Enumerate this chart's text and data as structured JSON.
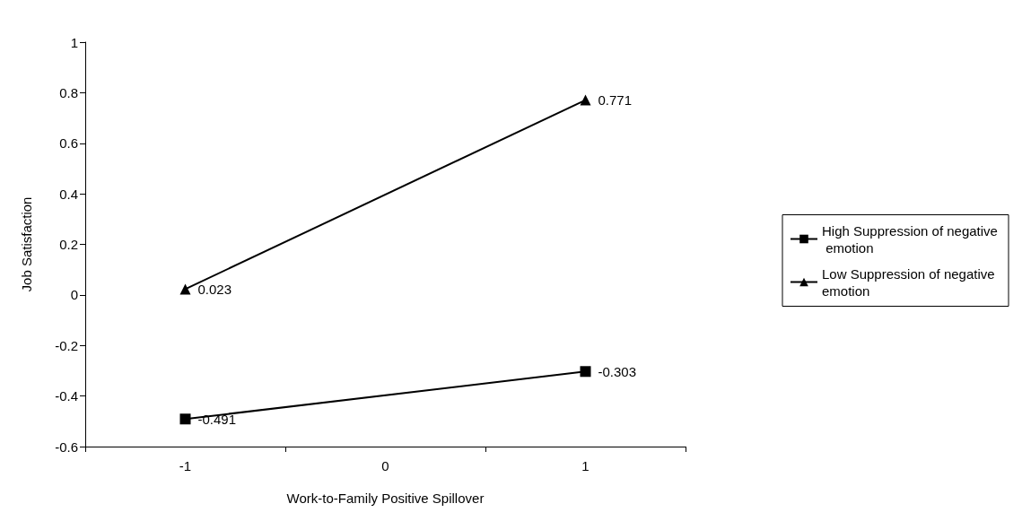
{
  "chart_data": {
    "type": "line",
    "xlabel": "Work-to-Family Positive Spillover",
    "ylabel": "Job Satisfaction",
    "categories": [
      "-1",
      "0",
      "1"
    ],
    "series": [
      {
        "name": "High Suppression of negative emotion",
        "color": "#000000",
        "marker": "square",
        "values": [
          -0.491,
          null,
          -0.303
        ]
      },
      {
        "name": "Low Suppression of negative emotion",
        "color": "#000000",
        "marker": "triangle",
        "values": [
          0.023,
          null,
          0.771
        ]
      }
    ],
    "ylim": [
      -0.6,
      1
    ],
    "yticks": [
      -0.6,
      -0.4,
      -0.2,
      0,
      0.2,
      0.4,
      0.6,
      0.8,
      1
    ],
    "grid": false,
    "legend": "right",
    "data_labels": true,
    "line_style": "solid"
  }
}
